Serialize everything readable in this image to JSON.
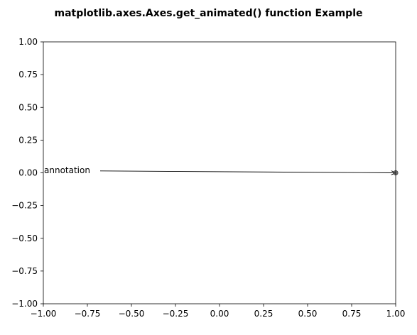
{
  "chart_data": {
    "type": "line",
    "title": "matplotlib.axes.Axes.get_animated() function Example",
    "xlabel": "",
    "ylabel": "",
    "xlim": [
      -1.0,
      1.0
    ],
    "ylim": [
      -1.0,
      1.0
    ],
    "grid": false,
    "x_ticks": [
      {
        "value": -1.0,
        "label": "−1.00"
      },
      {
        "value": -0.75,
        "label": "−0.75"
      },
      {
        "value": -0.5,
        "label": "−0.50"
      },
      {
        "value": -0.25,
        "label": "−0.25"
      },
      {
        "value": 0.0,
        "label": "0.00"
      },
      {
        "value": 0.25,
        "label": "0.25"
      },
      {
        "value": 0.5,
        "label": "0.50"
      },
      {
        "value": 0.75,
        "label": "0.75"
      },
      {
        "value": 1.0,
        "label": "1.00"
      }
    ],
    "y_ticks": [
      {
        "value": 1.0,
        "label": "1.00"
      },
      {
        "value": 0.75,
        "label": "0.75"
      },
      {
        "value": 0.5,
        "label": "0.50"
      },
      {
        "value": 0.25,
        "label": "0.25"
      },
      {
        "value": 0.0,
        "label": "0.00"
      },
      {
        "value": -0.25,
        "label": "−0.25"
      },
      {
        "value": -0.5,
        "label": "−0.50"
      },
      {
        "value": -0.75,
        "label": "−0.75"
      },
      {
        "value": -1.0,
        "label": "−1.00"
      }
    ],
    "annotations": [
      {
        "text": "annotation",
        "text_xy": [
          -1.0,
          0.02
        ],
        "arrow_to": [
          1.0,
          0.0
        ],
        "arrow_color": "#000000"
      }
    ],
    "series": [
      {
        "x": [
          1.0
        ],
        "y": [
          0.0
        ],
        "marker": "o",
        "color": "#555555"
      }
    ]
  }
}
